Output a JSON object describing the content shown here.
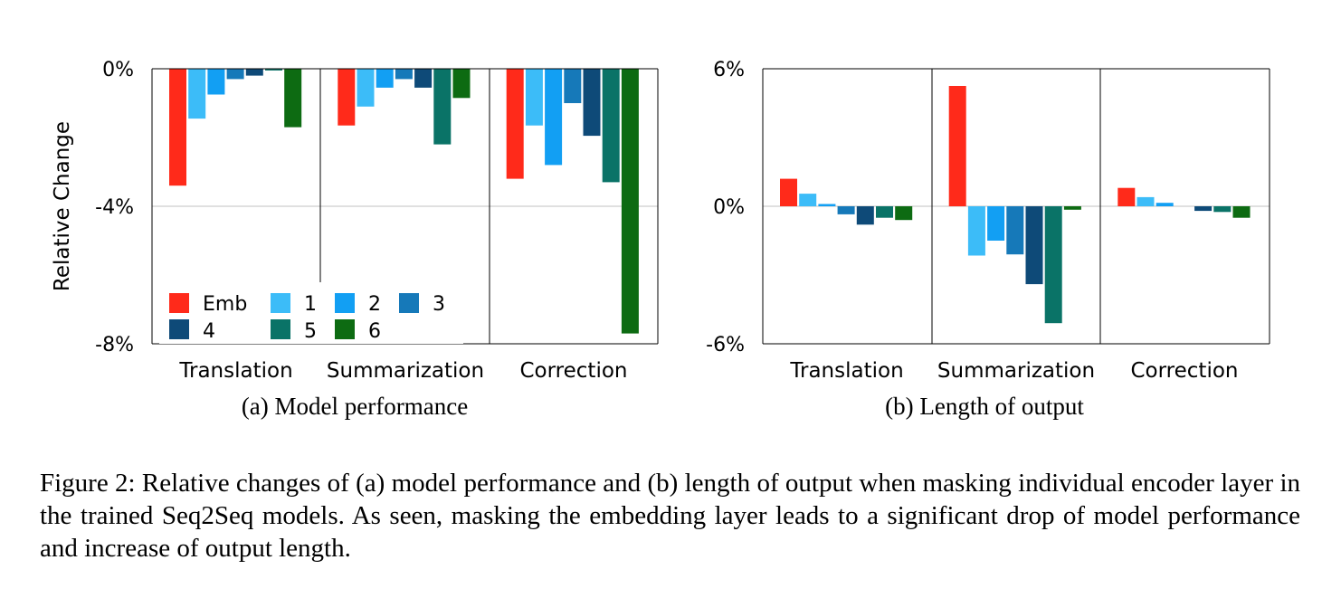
{
  "legend": [
    {
      "label": "Emb",
      "color": "#ff2a1a"
    },
    {
      "label": "1",
      "color": "#3cbcf8"
    },
    {
      "label": "2",
      "color": "#129ff3"
    },
    {
      "label": "3",
      "color": "#1679b9"
    },
    {
      "label": "4",
      "color": "#0e4a78"
    },
    {
      "label": "5",
      "color": "#0a7367"
    },
    {
      "label": "6",
      "color": "#0d6b12"
    }
  ],
  "chart_data": [
    {
      "type": "bar",
      "subtitle": "(a)  Model performance",
      "ylabel": "Relative Change",
      "ylim": [
        -8,
        0
      ],
      "yticks": [
        "0%",
        "-4%",
        "-8%"
      ],
      "categories": [
        "Translation",
        "Summarization",
        "Correction"
      ],
      "series": [
        {
          "name": "Emb",
          "values": [
            -3.4,
            -1.65,
            -3.2
          ]
        },
        {
          "name": "1",
          "values": [
            -1.45,
            -1.1,
            -1.65
          ]
        },
        {
          "name": "2",
          "values": [
            -0.75,
            -0.55,
            -2.8
          ]
        },
        {
          "name": "3",
          "values": [
            -0.3,
            -0.3,
            -1.0
          ]
        },
        {
          "name": "4",
          "values": [
            -0.2,
            -0.55,
            -1.95
          ]
        },
        {
          "name": "5",
          "values": [
            -0.05,
            -2.2,
            -3.3
          ]
        },
        {
          "name": "6",
          "values": [
            -1.7,
            -0.85,
            -7.7
          ]
        }
      ]
    },
    {
      "type": "bar",
      "subtitle": "(b)  Length of output",
      "ylim": [
        -6,
        6
      ],
      "yticks": [
        "6%",
        "0%",
        "-6%"
      ],
      "categories": [
        "Translation",
        "Summarization",
        "Correction"
      ],
      "series": [
        {
          "name": "Emb",
          "values": [
            1.2,
            5.25,
            0.8
          ]
        },
        {
          "name": "1",
          "values": [
            0.55,
            -2.15,
            0.4
          ]
        },
        {
          "name": "2",
          "values": [
            0.1,
            -1.5,
            0.15
          ]
        },
        {
          "name": "3",
          "values": [
            -0.35,
            -2.1,
            0.0
          ]
        },
        {
          "name": "4",
          "values": [
            -0.8,
            -3.4,
            -0.2
          ]
        },
        {
          "name": "5",
          "values": [
            -0.5,
            -5.1,
            -0.25
          ]
        },
        {
          "name": "6",
          "values": [
            -0.6,
            -0.15,
            -0.5
          ]
        }
      ]
    }
  ],
  "caption": "Figure 2: Relative changes of (a) model performance and (b) length of output when masking individual encoder layer in the trained Seq2Seq models. As seen, masking the embedding layer leads to a significant drop of model performance and increase of output length."
}
